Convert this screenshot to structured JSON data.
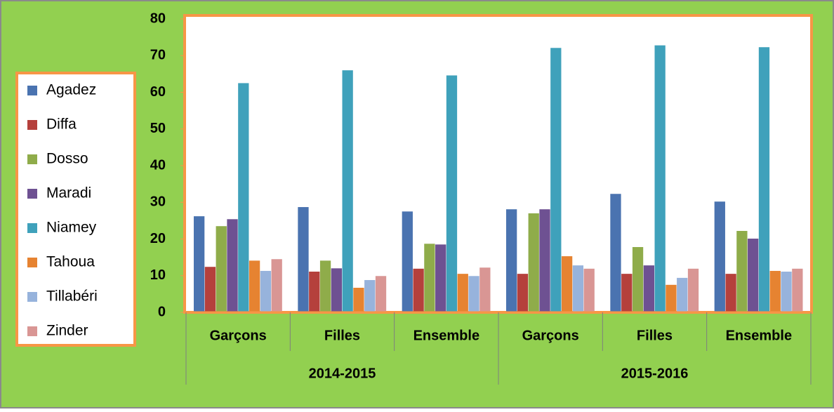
{
  "chart_data": {
    "type": "bar",
    "categories": [
      "Garçons",
      "Filles",
      "Ensemble",
      "Garçons",
      "Filles",
      "Ensemble"
    ],
    "category_groups": [
      "2014-2015",
      "2015-2016"
    ],
    "series": [
      {
        "name": "Agadez",
        "color": "#4a73b0",
        "values": [
          26.2,
          28.7,
          27.5,
          28.1,
          32.3,
          30.2
        ]
      },
      {
        "name": "Diffa",
        "color": "#b5403c",
        "values": [
          12.4,
          11.1,
          11.9,
          10.5,
          10.5,
          10.5
        ]
      },
      {
        "name": "Dosso",
        "color": "#8fac4a",
        "values": [
          23.5,
          14.1,
          18.7,
          27.0,
          17.8,
          22.2
        ]
      },
      {
        "name": "Maradi",
        "color": "#6e5192",
        "values": [
          25.4,
          12.0,
          18.5,
          28.1,
          12.8,
          20.1
        ]
      },
      {
        "name": "Niamey",
        "color": "#3fa1bb",
        "values": [
          62.5,
          66.0,
          64.6,
          72.1,
          72.8,
          72.3
        ]
      },
      {
        "name": "Tahoua",
        "color": "#e68331",
        "values": [
          14.1,
          6.7,
          10.5,
          15.3,
          7.5,
          11.3
        ]
      },
      {
        "name": "Tillabéri",
        "color": "#97b3dc",
        "values": [
          11.3,
          8.8,
          9.9,
          12.8,
          9.4,
          11.1
        ]
      },
      {
        "name": "Zinder",
        "color": "#d99694",
        "values": [
          14.5,
          9.9,
          12.2,
          11.9,
          11.9,
          11.9
        ]
      }
    ],
    "ylim": [
      0,
      80
    ],
    "yticks": [
      0,
      10,
      20,
      30,
      40,
      50,
      60,
      70,
      80
    ],
    "grid": false,
    "legend": "left"
  }
}
